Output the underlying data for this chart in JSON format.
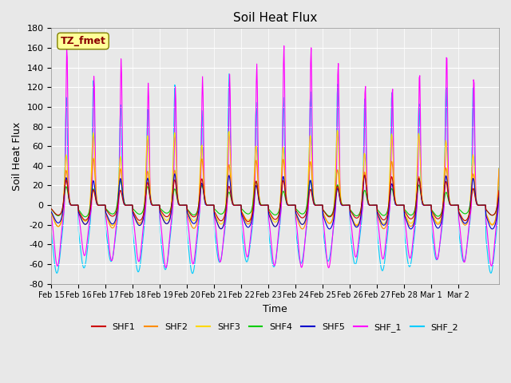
{
  "title": "Soil Heat Flux",
  "ylabel": "Soil Heat Flux",
  "xlabel": "Time",
  "ylim": [
    -80,
    180
  ],
  "xlim_days": 16.5,
  "annotation_text": "TZ_fmet",
  "annotation_bg": "#FFFF99",
  "annotation_border": "#808000",
  "annotation_text_color": "#8B0000",
  "bg_color": "#E8E8E8",
  "plot_bg": "#E8E8E8",
  "series_colors": {
    "SHF1": "#CC0000",
    "SHF2": "#FF8C00",
    "SHF3": "#FFD700",
    "SHF4": "#00CC00",
    "SHF5": "#0000CC",
    "SHF_1": "#FF00FF",
    "SHF_2": "#00CCFF"
  },
  "xtick_labels": [
    "Feb 15",
    "Feb 16",
    "Feb 17",
    "Feb 18",
    "Feb 19",
    "Feb 20",
    "Feb 21",
    "Feb 22",
    "Feb 23",
    "Feb 24",
    "Feb 25",
    "Feb 26",
    "Feb 27",
    "Feb 28",
    "Mar 1",
    "Mar 2"
  ],
  "ytick_labels": [
    -80,
    -60,
    -40,
    -20,
    0,
    20,
    40,
    60,
    80,
    100,
    120,
    140,
    160,
    180
  ]
}
